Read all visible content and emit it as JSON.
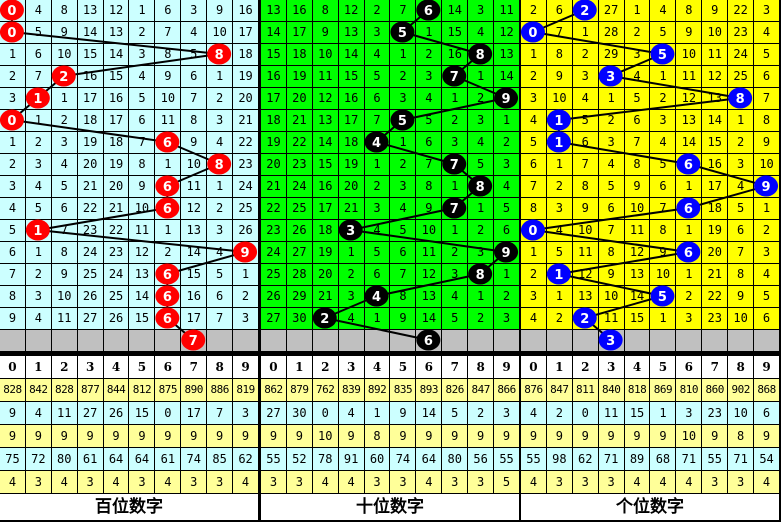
{
  "chart_data": {
    "type": "table",
    "sections": [
      {
        "title": "百位数字",
        "cell_bg": "#ccffff",
        "ball_color": "#ff0000",
        "rows": [
          {
            "hit": 0,
            "cells": [
              0,
              4,
              8,
              13,
              12,
              1,
              6,
              3,
              9,
              16
            ]
          },
          {
            "hit": 0,
            "cells": [
              0,
              5,
              9,
              14,
              13,
              2,
              7,
              4,
              10,
              17
            ]
          },
          {
            "hit": 8,
            "cells": [
              1,
              6,
              10,
              15,
              14,
              3,
              8,
              5,
              8,
              18
            ]
          },
          {
            "hit": 2,
            "cells": [
              2,
              7,
              2,
              16,
              15,
              4,
              9,
              6,
              1,
              19
            ]
          },
          {
            "hit": 1,
            "cells": [
              3,
              1,
              1,
              17,
              16,
              5,
              10,
              7,
              2,
              20
            ]
          },
          {
            "hit": 0,
            "cells": [
              0,
              1,
              2,
              18,
              17,
              6,
              11,
              8,
              3,
              21
            ]
          },
          {
            "hit": 6,
            "cells": [
              1,
              2,
              3,
              19,
              18,
              7,
              6,
              9,
              4,
              22
            ]
          },
          {
            "hit": 8,
            "cells": [
              2,
              3,
              4,
              20,
              19,
              8,
              1,
              10,
              8,
              23
            ]
          },
          {
            "hit": 6,
            "cells": [
              3,
              4,
              5,
              21,
              20,
              9,
              6,
              11,
              1,
              24
            ]
          },
          {
            "hit": 6,
            "cells": [
              4,
              5,
              6,
              22,
              21,
              10,
              6,
              12,
              2,
              25
            ]
          },
          {
            "hit": 1,
            "cells": [
              5,
              1,
              7,
              23,
              22,
              11,
              1,
              13,
              3,
              26
            ]
          },
          {
            "hit": 9,
            "cells": [
              6,
              1,
              8,
              24,
              23,
              12,
              2,
              14,
              4,
              9
            ]
          },
          {
            "hit": 6,
            "cells": [
              7,
              2,
              9,
              25,
              24,
              13,
              6,
              15,
              5,
              1
            ]
          },
          {
            "hit": 6,
            "cells": [
              8,
              3,
              10,
              26,
              25,
              14,
              6,
              16,
              6,
              2
            ]
          },
          {
            "hit": 6,
            "cells": [
              9,
              4,
              11,
              27,
              26,
              15,
              6,
              17,
              7,
              3
            ]
          }
        ],
        "next": 7,
        "stats": [
          [
            828,
            842,
            828,
            877,
            844,
            812,
            875,
            890,
            886,
            819
          ],
          [
            9,
            4,
            11,
            27,
            26,
            15,
            0,
            17,
            7,
            3
          ],
          [
            9,
            9,
            9,
            9,
            9,
            9,
            9,
            9,
            9,
            9
          ],
          [
            75,
            72,
            80,
            61,
            64,
            64,
            61,
            74,
            85,
            62
          ],
          [
            4,
            3,
            4,
            3,
            4,
            3,
            4,
            3,
            3,
            4
          ]
        ]
      },
      {
        "title": "十位数字",
        "cell_bg": "#00ff00",
        "ball_color": "#000000",
        "rows": [
          {
            "hit": 6,
            "cells": [
              13,
              16,
              8,
              12,
              2,
              7,
              6,
              14,
              3,
              11
            ]
          },
          {
            "hit": 5,
            "cells": [
              14,
              17,
              9,
              13,
              3,
              5,
              1,
              15,
              4,
              12
            ]
          },
          {
            "hit": 8,
            "cells": [
              15,
              18,
              10,
              14,
              4,
              1,
              2,
              16,
              8,
              13
            ]
          },
          {
            "hit": 7,
            "cells": [
              16,
              19,
              11,
              15,
              5,
              2,
              3,
              7,
              1,
              14
            ]
          },
          {
            "hit": 9,
            "cells": [
              17,
              20,
              12,
              16,
              6,
              3,
              4,
              1,
              2,
              9
            ]
          },
          {
            "hit": 5,
            "cells": [
              18,
              21,
              13,
              17,
              7,
              5,
              5,
              2,
              3,
              1
            ]
          },
          {
            "hit": 4,
            "cells": [
              19,
              22,
              14,
              18,
              4,
              1,
              6,
              3,
              4,
              2
            ]
          },
          {
            "hit": 7,
            "cells": [
              20,
              23,
              15,
              19,
              1,
              2,
              7,
              7,
              5,
              3
            ]
          },
          {
            "hit": 8,
            "cells": [
              21,
              24,
              16,
              20,
              2,
              3,
              8,
              1,
              8,
              4
            ]
          },
          {
            "hit": 7,
            "cells": [
              22,
              25,
              17,
              21,
              3,
              4,
              9,
              7,
              1,
              5
            ]
          },
          {
            "hit": 3,
            "cells": [
              23,
              26,
              18,
              3,
              4,
              5,
              10,
              1,
              2,
              6
            ]
          },
          {
            "hit": 9,
            "cells": [
              24,
              27,
              19,
              1,
              5,
              6,
              11,
              2,
              3,
              9
            ]
          },
          {
            "hit": 8,
            "cells": [
              25,
              28,
              20,
              2,
              6,
              7,
              12,
              3,
              8,
              1
            ]
          },
          {
            "hit": 4,
            "cells": [
              26,
              29,
              21,
              3,
              4,
              8,
              13,
              4,
              1,
              2
            ]
          },
          {
            "hit": 2,
            "cells": [
              27,
              30,
              2,
              4,
              1,
              9,
              14,
              5,
              2,
              3
            ]
          }
        ],
        "next": 6,
        "stats": [
          [
            862,
            879,
            762,
            839,
            892,
            835,
            893,
            826,
            847,
            866
          ],
          [
            27,
            30,
            0,
            4,
            1,
            9,
            14,
            5,
            2,
            3
          ],
          [
            9,
            9,
            10,
            9,
            8,
            9,
            9,
            9,
            9,
            9
          ],
          [
            55,
            52,
            78,
            91,
            60,
            74,
            64,
            80,
            56,
            55
          ],
          [
            3,
            3,
            4,
            4,
            3,
            3,
            4,
            3,
            3,
            5
          ]
        ]
      },
      {
        "title": "个位数字",
        "cell_bg": "#ffff00",
        "ball_color": "#0000ff",
        "rows": [
          {
            "hit": 2,
            "cells": [
              2,
              6,
              2,
              27,
              1,
              4,
              8,
              9,
              22,
              3
            ]
          },
          {
            "hit": 0,
            "cells": [
              0,
              7,
              1,
              28,
              2,
              5,
              9,
              10,
              23,
              4
            ]
          },
          {
            "hit": 5,
            "cells": [
              1,
              8,
              2,
              29,
              3,
              5,
              10,
              11,
              24,
              5
            ]
          },
          {
            "hit": 3,
            "cells": [
              2,
              9,
              3,
              3,
              4,
              1,
              11,
              12,
              25,
              6
            ]
          },
          {
            "hit": 8,
            "cells": [
              3,
              10,
              4,
              1,
              5,
              2,
              12,
              13,
              8,
              7
            ]
          },
          {
            "hit": 1,
            "cells": [
              4,
              1,
              5,
              2,
              6,
              3,
              13,
              14,
              1,
              8
            ]
          },
          {
            "hit": 1,
            "cells": [
              5,
              1,
              6,
              3,
              7,
              4,
              14,
              15,
              2,
              9
            ]
          },
          {
            "hit": 6,
            "cells": [
              6,
              1,
              7,
              4,
              8,
              5,
              6,
              16,
              3,
              10
            ]
          },
          {
            "hit": 9,
            "cells": [
              7,
              2,
              8,
              5,
              9,
              6,
              1,
              17,
              4,
              9
            ]
          },
          {
            "hit": 6,
            "cells": [
              8,
              3,
              9,
              6,
              10,
              7,
              6,
              18,
              5,
              1
            ]
          },
          {
            "hit": 0,
            "cells": [
              0,
              4,
              10,
              7,
              11,
              8,
              1,
              19,
              6,
              2
            ]
          },
          {
            "hit": 6,
            "cells": [
              1,
              5,
              11,
              8,
              12,
              9,
              6,
              20,
              7,
              3
            ]
          },
          {
            "hit": 1,
            "cells": [
              2,
              1,
              12,
              9,
              13,
              10,
              1,
              21,
              8,
              4
            ]
          },
          {
            "hit": 5,
            "cells": [
              3,
              1,
              13,
              10,
              14,
              5,
              2,
              22,
              9,
              5
            ]
          },
          {
            "hit": 2,
            "cells": [
              4,
              2,
              2,
              11,
              15,
              1,
              3,
              23,
              10,
              6
            ]
          }
        ],
        "next": 3,
        "stats": [
          [
            876,
            847,
            811,
            840,
            818,
            869,
            810,
            860,
            902,
            868
          ],
          [
            4,
            2,
            0,
            11,
            15,
            1,
            3,
            23,
            10,
            6
          ],
          [
            9,
            9,
            9,
            9,
            9,
            9,
            10,
            9,
            8,
            9
          ],
          [
            55,
            98,
            62,
            71,
            89,
            68,
            71,
            55,
            71,
            54
          ],
          [
            4,
            3,
            3,
            3,
            4,
            4,
            4,
            3,
            3,
            4
          ]
        ]
      }
    ],
    "digits": [
      "0",
      "1",
      "2",
      "3",
      "4",
      "5",
      "6",
      "7",
      "8",
      "9"
    ],
    "stat_row_colors": [
      "#ffff99",
      "#ccffff",
      "#ffff99",
      "#ccffff",
      "#ffff99"
    ]
  }
}
